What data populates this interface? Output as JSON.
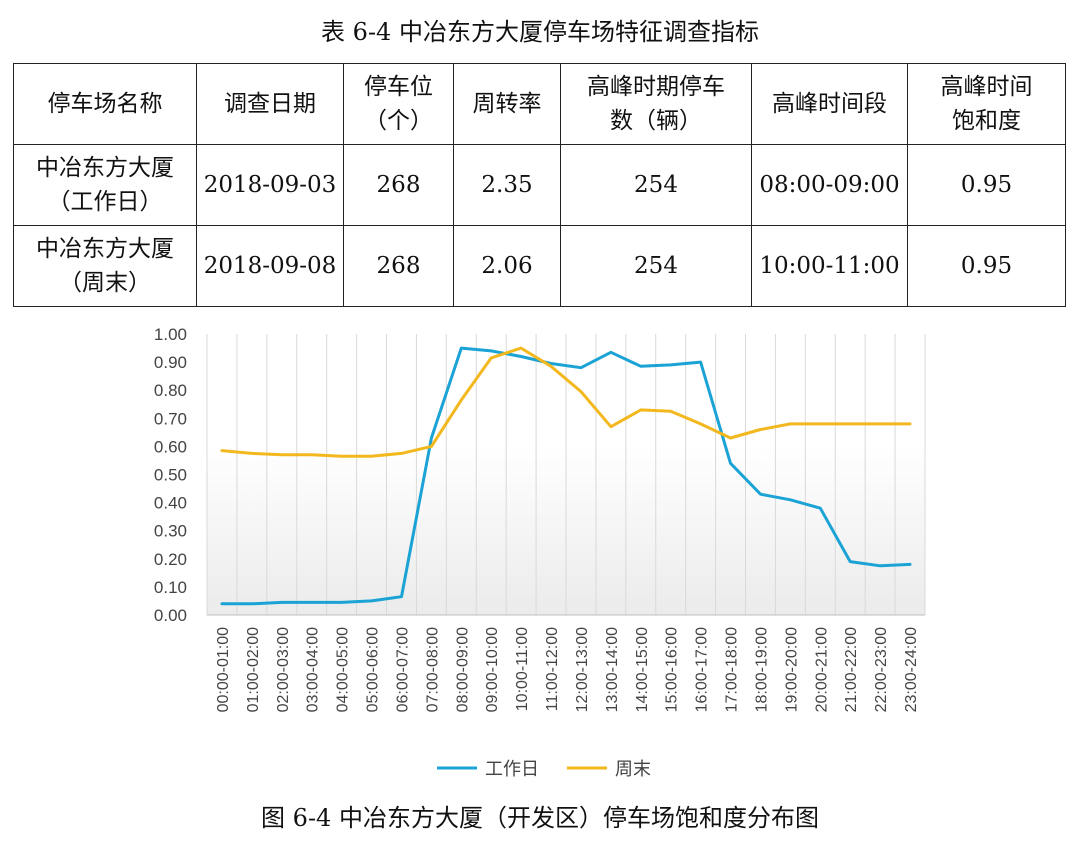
{
  "table_title": "表 6-4 中冶东方大厦停车场特征调查指标",
  "table": {
    "headers": [
      [
        "停车场名称"
      ],
      [
        "调查日期"
      ],
      [
        "停车位",
        "（个）"
      ],
      [
        "周转率"
      ],
      [
        "高峰时期停车",
        "数（辆）"
      ],
      [
        "高峰时间段"
      ],
      [
        "高峰时间",
        "饱和度"
      ]
    ],
    "rows": [
      {
        "name": [
          "中冶东方大厦",
          "（工作日）"
        ],
        "date": "2018-09-03",
        "spaces": "268",
        "turnover": "2.35",
        "peak_count": "254",
        "peak_period": "08:00-09:00",
        "peak_saturation": "0.95"
      },
      {
        "name": [
          "中冶东方大厦",
          "（周末）"
        ],
        "date": "2018-09-08",
        "spaces": "268",
        "turnover": "2.06",
        "peak_count": "254",
        "peak_period": "10:00-11:00",
        "peak_saturation": "0.95"
      }
    ]
  },
  "chart_data": {
    "type": "line",
    "title": "",
    "xlabel": "",
    "ylabel": "",
    "ylim": [
      0,
      1.0
    ],
    "yticks": [
      "0.00",
      "0.10",
      "0.20",
      "0.30",
      "0.40",
      "0.50",
      "0.60",
      "0.70",
      "0.80",
      "0.90",
      "1.00"
    ],
    "grid": "vertical",
    "legend_position": "bottom",
    "categories": [
      "00:00-01:00",
      "01:00-02:00",
      "02:00-03:00",
      "03:00-04:00",
      "04:00-05:00",
      "05:00-06:00",
      "06:00-07:00",
      "07:00-08:00",
      "08:00-09:00",
      "09:00-10:00",
      "10:00-11:00",
      "11:00-12:00",
      "12:00-13:00",
      "13:00-14:00",
      "14:00-15:00",
      "15:00-16:00",
      "16:00-17:00",
      "17:00-18:00",
      "18:00-19:00",
      "19:00-20:00",
      "20:00-21:00",
      "21:00-22:00",
      "22:00-23:00",
      "23:00-24:00"
    ],
    "series": [
      {
        "name": "工作日",
        "color": "#1BA3D6",
        "values": [
          0.04,
          0.04,
          0.045,
          0.045,
          0.045,
          0.05,
          0.065,
          0.63,
          0.95,
          0.94,
          0.92,
          0.895,
          0.88,
          0.935,
          0.885,
          0.89,
          0.9,
          0.54,
          0.43,
          0.41,
          0.38,
          0.19,
          0.175,
          0.18
        ]
      },
      {
        "name": "周末",
        "color": "#F2B81E",
        "values": [
          0.585,
          0.575,
          0.57,
          0.57,
          0.565,
          0.565,
          0.575,
          0.6,
          0.765,
          0.915,
          0.95,
          0.885,
          0.795,
          0.67,
          0.73,
          0.725,
          0.68,
          0.63,
          0.66,
          0.68,
          0.68,
          0.68,
          0.68,
          0.68
        ]
      }
    ]
  },
  "figure_caption": "图 6-4  中冶东方大厦（开发区）停车场饱和度分布图"
}
